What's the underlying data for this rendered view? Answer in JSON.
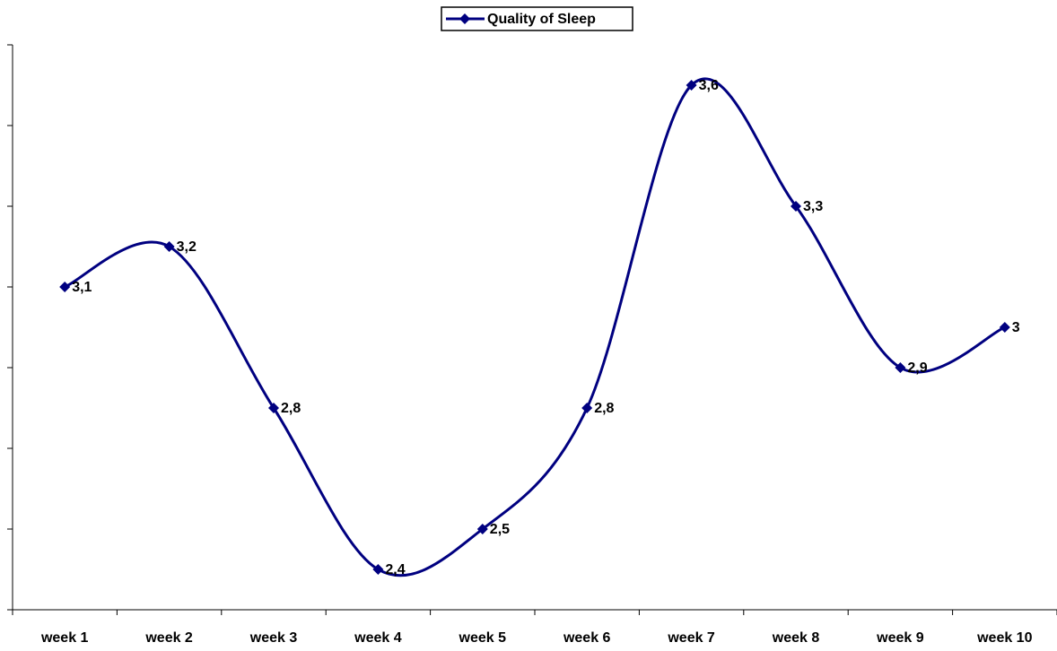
{
  "chart_data": {
    "type": "line",
    "categories": [
      "week 1",
      "week 2",
      "week 3",
      "week 4",
      "week 5",
      "week 6",
      "week 7",
      "week 8",
      "week 9",
      "week 10"
    ],
    "series": [
      {
        "name": "Quality of Sleep",
        "color": "#000080",
        "values": [
          3.1,
          3.2,
          2.8,
          2.4,
          2.5,
          2.8,
          3.6,
          3.3,
          2.9,
          3.0
        ],
        "value_labels": [
          "3,1",
          "3,2",
          "2,8",
          "2,4",
          "2,5",
          "2,8",
          "3,6",
          "3,3",
          "2,9",
          "3"
        ]
      }
    ],
    "ylim": [
      2.3,
      3.7
    ],
    "yticks": [
      2.3,
      2.5,
      2.7,
      2.9,
      3.1,
      3.3,
      3.5,
      3.7
    ],
    "smooth": true,
    "legend": "top"
  }
}
